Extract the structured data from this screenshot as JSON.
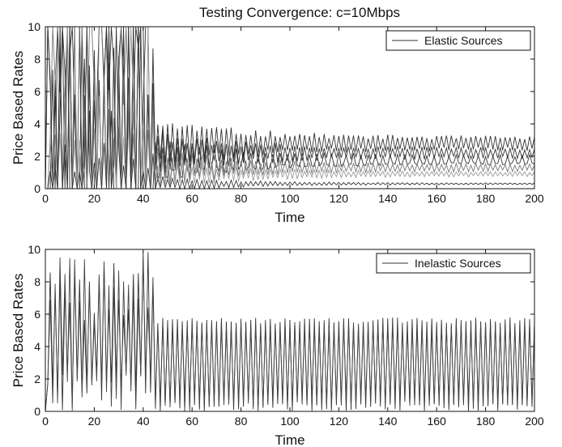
{
  "chart_data": [
    {
      "type": "line",
      "title": "Testing Convergence: c=10Mbps",
      "xlabel": "Time",
      "ylabel": "Price Based Rates",
      "xlim": [
        0,
        200
      ],
      "ylim": [
        0,
        10
      ],
      "xticks": [
        "0",
        "20",
        "40",
        "60",
        "80",
        "100",
        "120",
        "140",
        "160",
        "180",
        "200"
      ],
      "yticks": [
        "0",
        "2",
        "4",
        "6",
        "8",
        "10"
      ],
      "legend": {
        "placement": "top-right",
        "label": "Elastic Sources"
      },
      "grid": false,
      "series": [
        {
          "color": "#333333",
          "settle": 2.8,
          "amp0": 3.5,
          "ampEnd": 0.45,
          "period": 2,
          "seed": 11
        },
        {
          "color": "#333333",
          "settle": 2.2,
          "amp0": 3.0,
          "ampEnd": 0.35,
          "period": 2,
          "seed": 23
        },
        {
          "color": "#333333",
          "settle": 1.8,
          "amp0": 3.0,
          "ampEnd": 0.3,
          "period": 3,
          "seed": 37
        },
        {
          "color": "#777777",
          "settle": 1.3,
          "amp0": 2.5,
          "ampEnd": 0.25,
          "period": 2,
          "seed": 41
        },
        {
          "color": "#999999",
          "settle": 0.9,
          "amp0": 2.0,
          "ampEnd": 0.15,
          "period": 2,
          "seed": 53
        },
        {
          "color": "#333333",
          "settle": 0.3,
          "amp0": 1.0,
          "ampEnd": 0.05,
          "period": 2,
          "seed": 67
        }
      ]
    },
    {
      "type": "line",
      "title": "",
      "xlabel": "Time",
      "ylabel": "Price Based Rates",
      "xlim": [
        0,
        200
      ],
      "ylim": [
        0,
        10
      ],
      "xticks": [
        "0",
        "20",
        "40",
        "60",
        "80",
        "100",
        "120",
        "140",
        "160",
        "180",
        "200"
      ],
      "yticks": [
        "0",
        "2",
        "4",
        "6",
        "8",
        "10"
      ],
      "legend": {
        "placement": "top-right",
        "label": "Inelastic Sources"
      },
      "grid": false,
      "series": [
        {
          "color": "#333333",
          "peak": 5.6,
          "trough": 0.0,
          "period": 2,
          "seed": 71
        },
        {
          "color": "#444444",
          "peak": 5.3,
          "trough": 0.3,
          "period": 2,
          "seed": 83
        }
      ]
    }
  ]
}
